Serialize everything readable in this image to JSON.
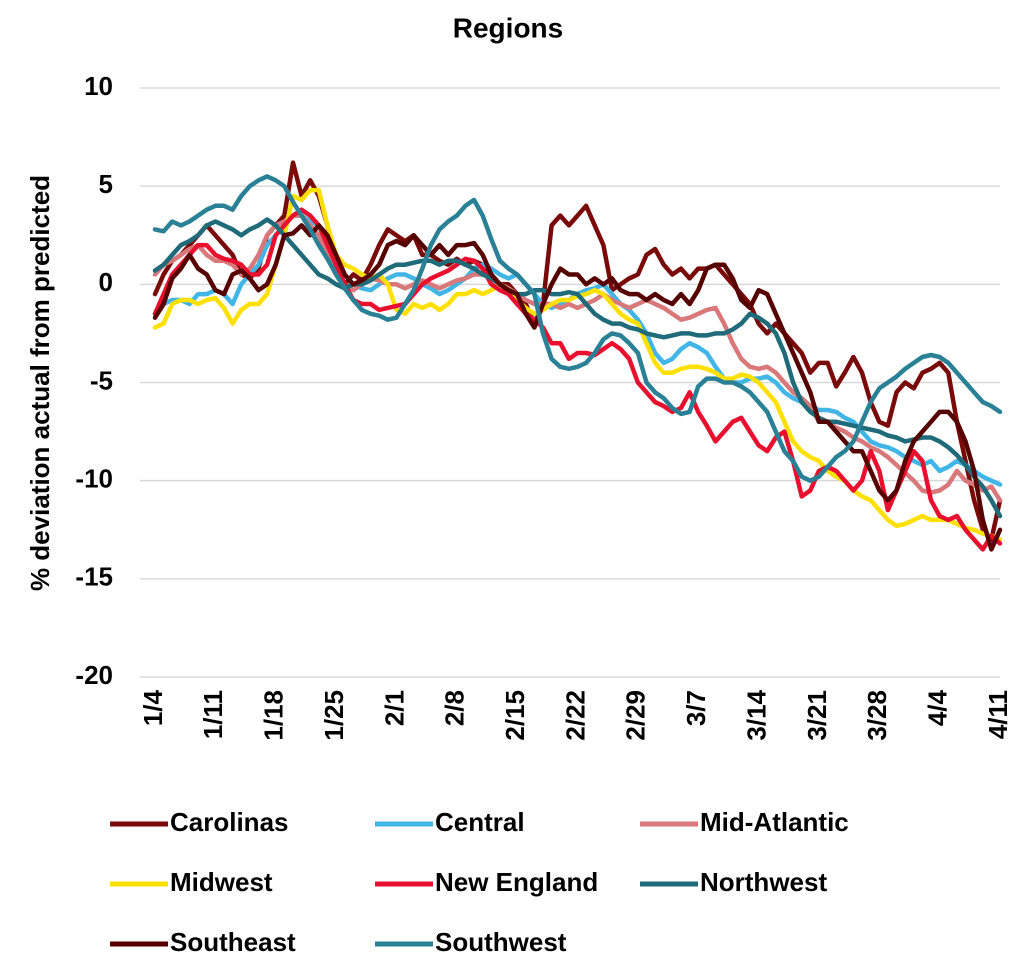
{
  "chart_data": {
    "type": "line",
    "title": "Regions",
    "y_label": "% deviation actual from predicted",
    "categories": [
      "1/4",
      null,
      null,
      null,
      null,
      null,
      null,
      "1/11",
      null,
      null,
      null,
      null,
      null,
      null,
      "1/18",
      null,
      null,
      null,
      null,
      null,
      null,
      "1/25",
      null,
      null,
      null,
      null,
      null,
      null,
      "2/1",
      null,
      null,
      null,
      null,
      null,
      null,
      "2/8",
      null,
      null,
      null,
      null,
      null,
      null,
      "2/15",
      null,
      null,
      null,
      null,
      null,
      null,
      "2/22",
      null,
      null,
      null,
      null,
      null,
      null,
      "2/29",
      null,
      null,
      null,
      null,
      null,
      null,
      "3/7",
      null,
      null,
      null,
      null,
      null,
      null,
      "3/14",
      null,
      null,
      null,
      null,
      null,
      null,
      "3/21",
      null,
      null,
      null,
      null,
      null,
      null,
      "3/28",
      null,
      null,
      null,
      null,
      null,
      null,
      "4/4",
      null,
      null,
      null,
      null,
      null,
      null,
      "4/11"
    ],
    "ylim": [
      -20,
      10
    ],
    "yticks": [
      -20,
      -15,
      -10,
      -5,
      0,
      5,
      10
    ],
    "grid": true,
    "legend": "bottom",
    "series": [
      {
        "name": "Carolinas",
        "color": "#7a0a0a",
        "values": [
          -0.5,
          0.5,
          1.2,
          1.5,
          2,
          2.5,
          3,
          2.5,
          2,
          1.5,
          0.5,
          0.3,
          0.8,
          2.5,
          3,
          3.5,
          6.2,
          4.5,
          5.3,
          4.5,
          3,
          1,
          0,
          0.5,
          0.2,
          1,
          2,
          2.8,
          2.5,
          2.2,
          2.5,
          1.5,
          1.5,
          1.2,
          1,
          1.3,
          1,
          1.2,
          1,
          0.5,
          0,
          0,
          -0.5,
          -1,
          -2,
          -1,
          3,
          3.5,
          3,
          3.5,
          4,
          3,
          2,
          -0.3,
          0,
          0.3,
          0.5,
          1.5,
          1.8,
          1,
          0.5,
          0.8,
          0.3,
          0.8,
          0.8,
          1,
          0.5,
          0,
          -0.5,
          -1,
          -2,
          -2.5,
          -2,
          -2.5,
          -3,
          -3.5,
          -4.5,
          -4,
          -4,
          -5.2,
          -4.5,
          -3.7,
          -4.5,
          -6,
          -7,
          -7.2,
          -5.5,
          -5,
          -5.3,
          -4.5,
          -4.3,
          -4,
          -4.5,
          -7,
          -9,
          -11,
          -12.5,
          -13,
          -11
        ]
      },
      {
        "name": "Central",
        "color": "#41b6e6",
        "values": [
          -1.5,
          -1,
          -0.8,
          -0.8,
          -1,
          -0.5,
          -0.5,
          -0.3,
          -0.5,
          -1,
          0,
          0.5,
          1,
          2,
          2.5,
          3,
          3.5,
          3.5,
          3.2,
          3,
          2.5,
          1.5,
          0.5,
          0,
          -0.2,
          -0.3,
          0,
          0.3,
          0.5,
          0.5,
          0.3,
          0,
          -0.2,
          -0.5,
          -0.3,
          0,
          0.3,
          0.8,
          1,
          0.8,
          0.5,
          0.3,
          0.5,
          0,
          -0.5,
          -1,
          -1.2,
          -1,
          -0.8,
          -0.5,
          -0.3,
          -0.2,
          0,
          -0.5,
          -1,
          -1.3,
          -1.8,
          -2.5,
          -3.5,
          -4,
          -3.8,
          -3.3,
          -3,
          -3.2,
          -3.5,
          -4.2,
          -4.8,
          -5,
          -5,
          -4.8,
          -4.8,
          -4.7,
          -5,
          -5.5,
          -5.8,
          -6,
          -6.2,
          -6.4,
          -6.4,
          -6.5,
          -6.8,
          -7,
          -7.5,
          -8,
          -8.2,
          -8.3,
          -8.5,
          -8.8,
          -9,
          -9.2,
          -9,
          -9.5,
          -9.3,
          -9,
          -9.2,
          -9.5,
          -9.8,
          -10,
          -10.2
        ]
      },
      {
        "name": "Mid-Atlantic",
        "color": "#d9787a",
        "values": [
          0.5,
          1,
          1.2,
          1.5,
          1.8,
          2,
          1.5,
          1.2,
          1.2,
          1,
          0.5,
          0.8,
          1.5,
          2.5,
          3,
          3.2,
          3.5,
          3.5,
          3,
          2.5,
          1.5,
          0.5,
          0,
          -0.3,
          0,
          0.3,
          0.2,
          0,
          0,
          -0.2,
          0,
          0.2,
          0,
          -0.2,
          0,
          0.2,
          0.3,
          0.5,
          0.5,
          0.3,
          0,
          -0.2,
          -0.5,
          -0.8,
          -1,
          -1,
          -1,
          -1.2,
          -1,
          -1.2,
          -1,
          -0.8,
          -0.5,
          -0.8,
          -1,
          -1.2,
          -1,
          -0.8,
          -1,
          -1.2,
          -1.5,
          -1.8,
          -1.7,
          -1.5,
          -1.3,
          -1.2,
          -2,
          -3,
          -3.8,
          -4.2,
          -4.3,
          -4.2,
          -4.5,
          -5,
          -5.5,
          -5.8,
          -6.2,
          -7,
          -7,
          -7.3,
          -7.5,
          -7.8,
          -8,
          -8.3,
          -8.5,
          -8.8,
          -9.2,
          -9.6,
          -10,
          -10.5,
          -10.6,
          -10.5,
          -10.2,
          -9.5,
          -10,
          -10.2,
          -10.5,
          -10.3,
          -11
        ]
      },
      {
        "name": "Midwest",
        "color": "#ffe000",
        "values": [
          -2.2,
          -2,
          -1,
          -0.8,
          -0.8,
          -1,
          -0.8,
          -0.7,
          -1.2,
          -2,
          -1.3,
          -1,
          -1,
          -0.5,
          1,
          2.5,
          4.5,
          4.3,
          4.8,
          4.8,
          3,
          1.5,
          1,
          0.8,
          0.5,
          0.3,
          0.5,
          0,
          -1.3,
          -1.5,
          -1,
          -1.2,
          -1,
          -1.3,
          -1,
          -0.5,
          -0.5,
          -0.3,
          -0.5,
          -0.3,
          0,
          -0.3,
          -0.8,
          -1.2,
          -1.5,
          -1.3,
          -1,
          -0.8,
          -0.8,
          -0.6,
          -0.5,
          -0.3,
          -0.5,
          -1,
          -1.5,
          -1.8,
          -2,
          -3,
          -4,
          -4.5,
          -4.5,
          -4.3,
          -4.2,
          -4.2,
          -4.3,
          -4.5,
          -4.8,
          -4.8,
          -4.6,
          -4.7,
          -5,
          -5.5,
          -6,
          -7,
          -8,
          -8.5,
          -8.8,
          -9,
          -9.5,
          -9.8,
          -10,
          -10.5,
          -10.8,
          -11,
          -11.5,
          -12,
          -12.3,
          -12.2,
          -12,
          -11.8,
          -12,
          -12,
          -12,
          -12.2,
          -12.4,
          -12.5,
          -12.7,
          -12.8,
          -13
        ]
      },
      {
        "name": "New England",
        "color": "#e8102e",
        "values": [
          -1.5,
          -0.5,
          0.5,
          1,
          1.5,
          2,
          2,
          1.5,
          1.3,
          1.2,
          1,
          0.5,
          0.5,
          1,
          2.5,
          3,
          3.5,
          3.8,
          3.5,
          3,
          2,
          1,
          0,
          -0.8,
          -1,
          -1,
          -1.3,
          -1.2,
          -1.1,
          -1,
          -0.5,
          0,
          0.3,
          0.5,
          0.7,
          1,
          1.3,
          1.2,
          0.8,
          0,
          -0.3,
          -0.5,
          -1,
          -1.5,
          -1.8,
          -2.2,
          -3,
          -3,
          -3.8,
          -3.5,
          -3.5,
          -3.6,
          -3.3,
          -3,
          -3.3,
          -3.8,
          -5,
          -5.5,
          -6,
          -6.2,
          -6.5,
          -6.3,
          -5.5,
          -6.5,
          -7.2,
          -8,
          -7.5,
          -7,
          -6.8,
          -7.5,
          -8.2,
          -8.5,
          -7.8,
          -7.5,
          -9,
          -10.8,
          -10.5,
          -9.5,
          -9.3,
          -9.5,
          -10,
          -10.5,
          -10,
          -8.5,
          -9.5,
          -11.5,
          -10.5,
          -9.5,
          -8.5,
          -9,
          -11,
          -11.8,
          -12,
          -11.8,
          -12.5,
          -13,
          -13.5,
          -12.8,
          -13.2
        ]
      },
      {
        "name": "Northwest",
        "color": "#1f6b7a",
        "values": [
          0.7,
          1,
          1.5,
          2,
          2.2,
          2.5,
          3,
          3.2,
          3,
          2.8,
          2.5,
          2.8,
          3,
          3.3,
          3,
          2.5,
          2,
          1.5,
          1,
          0.5,
          0.3,
          0,
          -0.2,
          0,
          0,
          0.2,
          0.5,
          0.8,
          1,
          1,
          1.1,
          1.2,
          1.2,
          1,
          1.2,
          1.2,
          1,
          0.8,
          0.5,
          0.3,
          0,
          -0.3,
          -0.5,
          -0.5,
          -0.3,
          -0.3,
          -0.5,
          -0.5,
          -0.4,
          -0.5,
          -1,
          -1.5,
          -1.8,
          -2,
          -2,
          -2.2,
          -2.3,
          -2.5,
          -2.6,
          -2.7,
          -2.6,
          -2.5,
          -2.5,
          -2.6,
          -2.6,
          -2.5,
          -2.5,
          -2.3,
          -2,
          -1.5,
          -1.7,
          -2,
          -2.5,
          -3.5,
          -5,
          -6,
          -6.5,
          -6.8,
          -7,
          -7,
          -7.1,
          -7.2,
          -7.3,
          -7.4,
          -7.5,
          -7.7,
          -7.8,
          -8,
          -7.9,
          -7.8,
          -7.8,
          -8,
          -8.3,
          -8.7,
          -9.2,
          -9.8,
          -10.3,
          -11,
          -11.8
        ]
      },
      {
        "name": "Southeast",
        "color": "#560000",
        "values": [
          -1.7,
          -1,
          0.3,
          0.8,
          1.5,
          0.8,
          0.5,
          -0.3,
          -0.5,
          0.5,
          0.7,
          0.3,
          -0.3,
          0,
          1,
          2.5,
          2.6,
          3,
          2.5,
          3,
          2.5,
          1.5,
          0.5,
          0,
          0.2,
          0.5,
          1,
          2,
          2.2,
          2,
          2.5,
          2,
          1.5,
          2,
          1.5,
          2,
          2,
          2.1,
          1.5,
          0.5,
          0,
          -0.3,
          -0.5,
          -1.5,
          -2.2,
          -1,
          0,
          0.8,
          0.5,
          0.5,
          0,
          0.3,
          0,
          0.3,
          -0.3,
          -0.5,
          -0.5,
          -0.8,
          -0.5,
          -0.8,
          -1,
          -0.5,
          -1,
          -0.3,
          0.8,
          1,
          1,
          0.3,
          -0.8,
          -1.2,
          -0.3,
          -0.5,
          -1.5,
          -2.5,
          -3.5,
          -4.5,
          -5.5,
          -7,
          -7,
          -7.5,
          -8,
          -8.5,
          -8.5,
          -9.5,
          -10.5,
          -11,
          -10.5,
          -9,
          -8,
          -7.5,
          -7,
          -6.5,
          -6.5,
          -7,
          -8,
          -9.5,
          -12,
          -13.5,
          -12.5
        ]
      },
      {
        "name": "Southwest",
        "color": "#2a8196",
        "values": [
          2.8,
          2.7,
          3.2,
          3,
          3.2,
          3.5,
          3.8,
          4,
          4,
          3.8,
          4.5,
          5,
          5.3,
          5.5,
          5.3,
          5,
          4.2,
          3.5,
          2.8,
          2,
          1.3,
          0.5,
          -0.2,
          -0.8,
          -1.3,
          -1.5,
          -1.6,
          -1.8,
          -1.7,
          -1,
          -0.3,
          0.8,
          2,
          2.8,
          3.2,
          3.5,
          4,
          4.3,
          3.5,
          2.3,
          1.2,
          0.8,
          0.5,
          0,
          -0.5,
          -2.5,
          -3.8,
          -4.2,
          -4.3,
          -4.2,
          -4,
          -3.5,
          -2.8,
          -2.5,
          -2.6,
          -3,
          -3.5,
          -5,
          -5.5,
          -5.8,
          -6.3,
          -6.6,
          -6.5,
          -5.2,
          -4.8,
          -4.8,
          -5,
          -5,
          -5.2,
          -5.5,
          -6,
          -6.5,
          -7.5,
          -8.5,
          -9,
          -9.8,
          -10,
          -9.8,
          -9.3,
          -8.8,
          -8.5,
          -8,
          -7,
          -6,
          -5.3,
          -5,
          -4.7,
          -4.3,
          -4,
          -3.7,
          -3.6,
          -3.7,
          -4,
          -4.5,
          -5,
          -5.5,
          -6,
          -6.2,
          -6.5
        ]
      }
    ]
  }
}
